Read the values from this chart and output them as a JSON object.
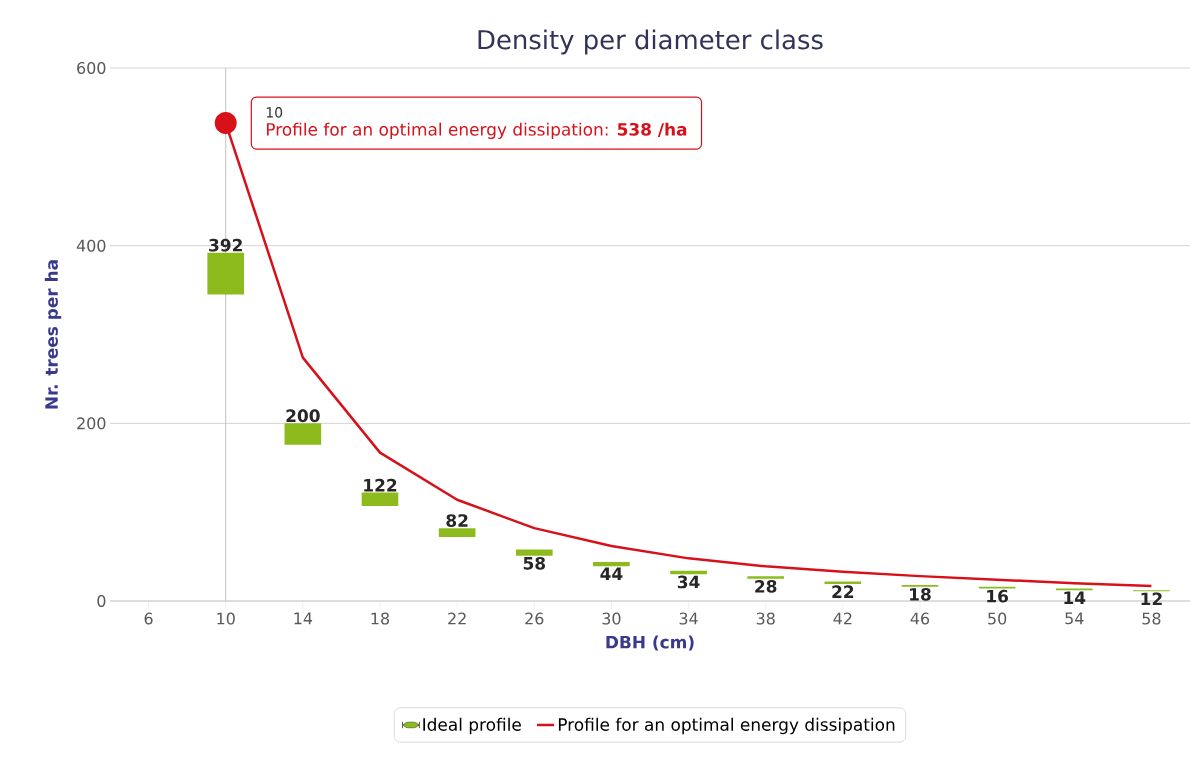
{
  "chart_data": {
    "type": "line",
    "title": "Density per diameter class",
    "xlabel": "DBH (cm)",
    "ylabel": "Nr. trees per ha",
    "x": [
      10,
      14,
      18,
      22,
      26,
      30,
      34,
      38,
      42,
      46,
      50,
      54,
      58
    ],
    "series": [
      {
        "name": "Ideal profile",
        "type": "bar",
        "color": "#8dbb1e",
        "base": [
          345,
          176,
          107,
          72,
          51,
          39,
          30,
          25,
          19,
          16,
          14,
          12,
          11
        ],
        "values": [
          47,
          24,
          15,
          10,
          7,
          5,
          4,
          3,
          3,
          2,
          2,
          2,
          1
        ],
        "value_labels": [
          "392",
          "200",
          "122",
          "82",
          "58",
          "44",
          "34",
          "28",
          "22",
          "18",
          "16",
          "14",
          "12"
        ]
      },
      {
        "name": "Profile for an optimal energy dissipation",
        "color": "#d7101a",
        "values": [
          538,
          274,
          167,
          114,
          82,
          62,
          48,
          39,
          33,
          28,
          24,
          20,
          17
        ]
      }
    ],
    "xlim": [
      4,
      60
    ],
    "xticks": [
      6,
      10,
      14,
      18,
      22,
      26,
      30,
      34,
      38,
      42,
      46,
      50,
      54,
      58
    ],
    "ylim": [
      0,
      600
    ],
    "yticks": [
      0,
      200,
      400,
      600
    ],
    "grid": "y",
    "legend": "bottom",
    "ref_lines": [
      {
        "axis": "x",
        "value": 10,
        "color": "#c0c0c0"
      }
    ],
    "annotations": [
      {
        "text": "10",
        "x": 10,
        "y": 538
      },
      "Profile for an optimal energy dissipation: **538 /ha**"
    ]
  }
}
